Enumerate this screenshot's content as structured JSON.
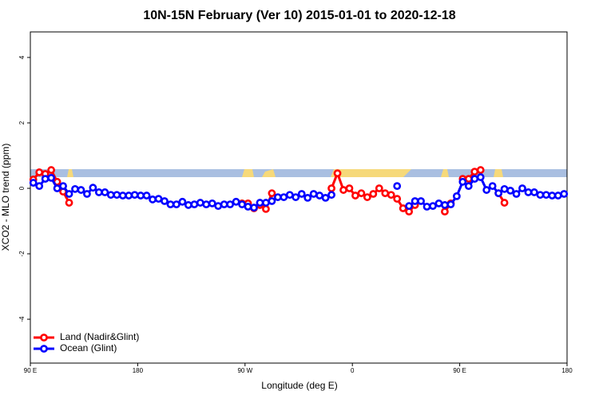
{
  "chart_data": {
    "type": "line",
    "title": "10N-15N February (Ver 10)   2015-01-01 to 2020-12-18",
    "xlabel": "Longitude (deg E)",
    "ylabel": "XCO2 - MLO trend (ppm)",
    "xlim": [
      90,
      540
    ],
    "xticks": [
      {
        "value": 90,
        "label": "90 E"
      },
      180,
      {
        "value": 270,
        "label": "90 W"
      },
      {
        "value": 360,
        "label": "0"
      },
      {
        "value": 450,
        "label": "90 E"
      },
      {
        "value": 540,
        "label": "180"
      }
    ],
    "ylim": [
      -5.34,
      4.78
    ],
    "yticks": [
      4,
      2,
      0,
      -2,
      -4
    ],
    "legend": "bottom-left",
    "x": [
      92.5,
      97.5,
      102.5,
      107.5,
      112.5,
      117.5,
      122.5,
      127.5,
      132.5,
      137.5,
      142.5,
      147.5,
      152.5,
      157.5,
      162.5,
      167.5,
      172.5,
      177.5,
      182.5,
      187.5,
      192.5,
      197.5,
      202.5,
      207.5,
      212.5,
      217.5,
      222.5,
      227.5,
      232.5,
      237.5,
      242.5,
      247.5,
      252.5,
      257.5,
      262.5,
      267.5,
      272.5,
      277.5,
      282.5,
      287.5,
      292.5,
      297.5,
      302.5,
      307.5,
      312.5,
      317.5,
      322.5,
      327.5,
      332.5,
      337.5,
      342.5,
      347.5,
      352.5,
      357.5,
      362.5,
      367.5,
      372.5,
      377.5,
      382.5,
      387.5,
      392.5,
      397.5,
      402.5,
      407.5,
      412.5,
      417.5,
      422.5,
      427.5,
      432.5,
      437.5,
      442.5,
      447.5,
      452.5,
      457.5,
      462.5,
      467.5,
      472.5,
      477.5,
      482.5,
      487.5,
      492.5,
      497.5,
      502.5,
      507.5,
      512.5,
      517.5,
      522.5,
      527.5,
      532.5,
      537.5
    ],
    "series": [
      {
        "name": "Land (Nadir&Glint)",
        "color": "#ff0000",
        "values": [
          0.27,
          0.49,
          0.44,
          0.56,
          0.2,
          -0.1,
          -0.44,
          null,
          null,
          null,
          null,
          null,
          null,
          null,
          null,
          null,
          null,
          null,
          null,
          null,
          null,
          null,
          null,
          null,
          null,
          null,
          null,
          null,
          null,
          null,
          null,
          null,
          null,
          null,
          null,
          -0.46,
          -0.46,
          -0.61,
          -0.51,
          -0.63,
          -0.15,
          null,
          null,
          null,
          null,
          null,
          null,
          null,
          null,
          null,
          0.0,
          0.46,
          -0.05,
          0.0,
          -0.22,
          -0.15,
          -0.27,
          -0.17,
          0.0,
          -0.15,
          -0.2,
          -0.32,
          -0.61,
          -0.71,
          -0.51,
          null,
          null,
          null,
          null,
          -0.71,
          -0.46,
          null,
          0.29,
          0.29,
          0.51,
          0.56,
          null,
          null,
          -0.15,
          -0.44,
          null,
          null,
          null,
          null,
          null,
          null,
          null,
          null,
          null,
          null
        ]
      },
      {
        "name": "Ocean (Glint)",
        "color": "#0000ff",
        "values": [
          0.17,
          0.07,
          0.29,
          0.32,
          0.0,
          0.07,
          -0.17,
          -0.02,
          -0.05,
          -0.17,
          0.02,
          -0.12,
          -0.12,
          -0.2,
          -0.2,
          -0.22,
          -0.22,
          -0.2,
          -0.22,
          -0.22,
          -0.34,
          -0.32,
          -0.39,
          -0.49,
          -0.49,
          -0.41,
          -0.51,
          -0.49,
          -0.44,
          -0.49,
          -0.46,
          -0.54,
          -0.49,
          -0.49,
          -0.41,
          -0.49,
          -0.56,
          -0.59,
          -0.44,
          -0.44,
          -0.39,
          -0.27,
          -0.27,
          -0.2,
          -0.27,
          -0.17,
          -0.29,
          -0.17,
          -0.22,
          -0.29,
          -0.2,
          null,
          null,
          null,
          null,
          null,
          null,
          null,
          null,
          null,
          null,
          0.07,
          null,
          -0.54,
          -0.39,
          -0.39,
          -0.56,
          -0.54,
          -0.46,
          -0.51,
          -0.49,
          -0.24,
          0.2,
          0.07,
          0.29,
          0.34,
          -0.05,
          0.07,
          -0.15,
          -0.02,
          -0.07,
          -0.17,
          0.0,
          -0.12,
          -0.12,
          -0.2,
          -0.2,
          -0.22,
          -0.22,
          -0.17
        ]
      }
    ]
  }
}
